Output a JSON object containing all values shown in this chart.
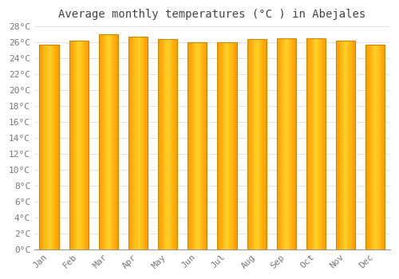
{
  "title": "Average monthly temperatures (°C ) in Abejales",
  "months": [
    "Jan",
    "Feb",
    "Mar",
    "Apr",
    "May",
    "Jun",
    "Jul",
    "Aug",
    "Sep",
    "Oct",
    "Nov",
    "Dec"
  ],
  "values": [
    25.7,
    26.2,
    27.0,
    26.7,
    26.4,
    26.0,
    26.0,
    26.4,
    26.5,
    26.5,
    26.2,
    25.7
  ],
  "bar_face_color": "#FFBB00",
  "bar_edge_color": "#CC8800",
  "background_color": "#FFFFFF",
  "grid_color": "#DDDDDD",
  "text_color": "#777777",
  "title_color": "#444444",
  "ylim": [
    0,
    28
  ],
  "ytick_step": 2,
  "title_fontsize": 10,
  "tick_fontsize": 8,
  "font_family": "monospace",
  "bar_width": 0.65
}
